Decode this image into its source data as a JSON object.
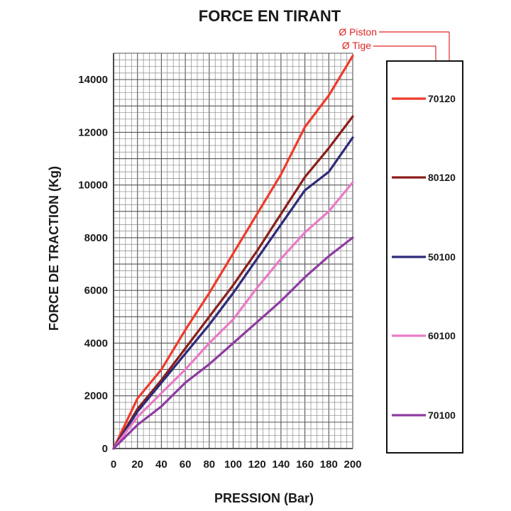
{
  "chart_data": {
    "type": "line",
    "title": "FORCE  EN TIRANT",
    "xlabel": "PRESSION  (Bar)",
    "ylabel": "FORCE DE TRACTION (Kg)",
    "xlim": [
      0,
      200
    ],
    "ylim": [
      0,
      15000
    ],
    "xticks": [
      0,
      20,
      40,
      60,
      80,
      100,
      120,
      140,
      160,
      180,
      200
    ],
    "yticks": [
      0,
      2000,
      4000,
      6000,
      8000,
      10000,
      12000,
      14000
    ],
    "grid": true,
    "legend_placement": "right",
    "x": [
      0,
      20,
      40,
      60,
      80,
      100,
      120,
      140,
      160,
      180,
      200
    ],
    "series": [
      {
        "name": "70120",
        "color": "#ee3b2c",
        "values": [
          0,
          1900,
          3000,
          4500,
          5900,
          7400,
          8900,
          10400,
          12200,
          13400,
          14900
        ]
      },
      {
        "name": "80120",
        "color": "#8b1e1a",
        "values": [
          0,
          1500,
          2600,
          3800,
          5000,
          6200,
          7500,
          8900,
          10300,
          11400,
          12600
        ]
      },
      {
        "name": "50100",
        "color": "#2e2b7a",
        "values": [
          0,
          1400,
          2500,
          3600,
          4700,
          5900,
          7200,
          8500,
          9800,
          10500,
          11800
        ]
      },
      {
        "name": "60100",
        "color": "#e87ac6",
        "values": [
          0,
          1200,
          2100,
          3000,
          4000,
          4900,
          6100,
          7200,
          8200,
          9000,
          10100
        ]
      },
      {
        "name": "70100",
        "color": "#8e3aa0",
        "values": [
          0,
          900,
          1600,
          2500,
          3200,
          4000,
          4800,
          5600,
          6500,
          7300,
          8000
        ]
      }
    ]
  },
  "annotations": {
    "piston_label": "Ø Piston",
    "tige_label": "Ø Tige",
    "color": "#e02424"
  }
}
